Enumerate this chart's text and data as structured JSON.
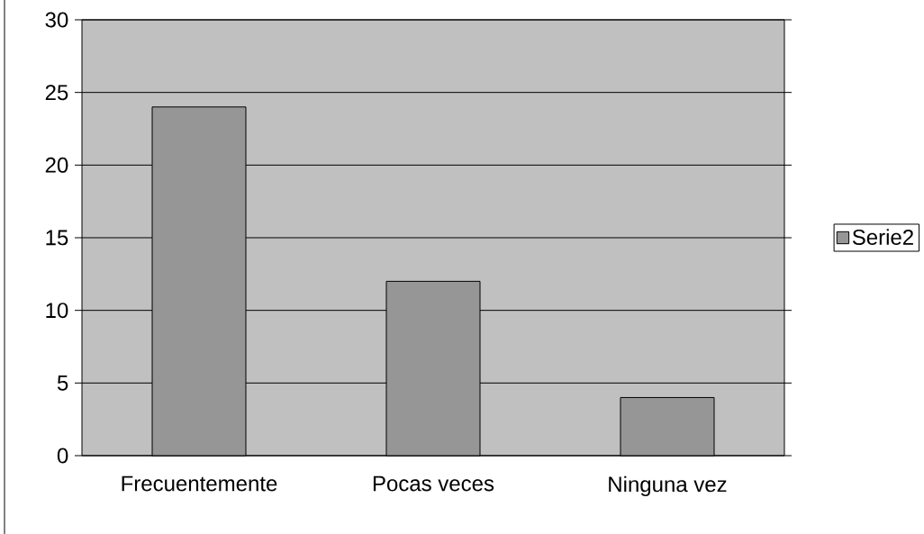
{
  "chart_data": {
    "type": "bar",
    "categories": [
      "Frecuentemente",
      "Pocas veces",
      "Ninguna vez"
    ],
    "series": [
      {
        "name": "Serie2",
        "color": "#969696",
        "values": [
          24,
          12,
          4
        ]
      }
    ],
    "ylim": [
      0,
      30
    ],
    "yticks": [
      0,
      5,
      10,
      15,
      20,
      25,
      30
    ],
    "grid": "y",
    "legend": "right"
  }
}
